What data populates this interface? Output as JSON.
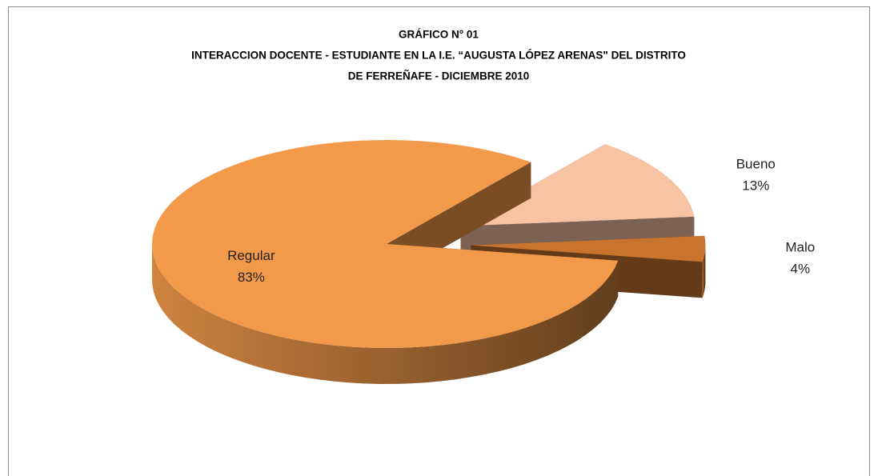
{
  "chart_data": {
    "type": "pie",
    "title": "GRÁFICO N° 01",
    "subtitle": [
      "INTERACCION DOCENTE - ESTUDIANTE EN LA I.E. “AUGUSTA LÓPEZ ARENAS\" DEL DISTRITO",
      "DE FERREÑAFE - DICIEMBRE 2010"
    ],
    "categories": [
      "Bueno",
      "Malo",
      "Regular"
    ],
    "values": [
      13,
      4,
      83
    ],
    "value_labels": [
      "13%",
      "4%",
      "83%"
    ],
    "colors": [
      "#f7c3a3",
      "#c8742f",
      "#f39a4a"
    ],
    "exploded": [
      true,
      true,
      false
    ]
  }
}
